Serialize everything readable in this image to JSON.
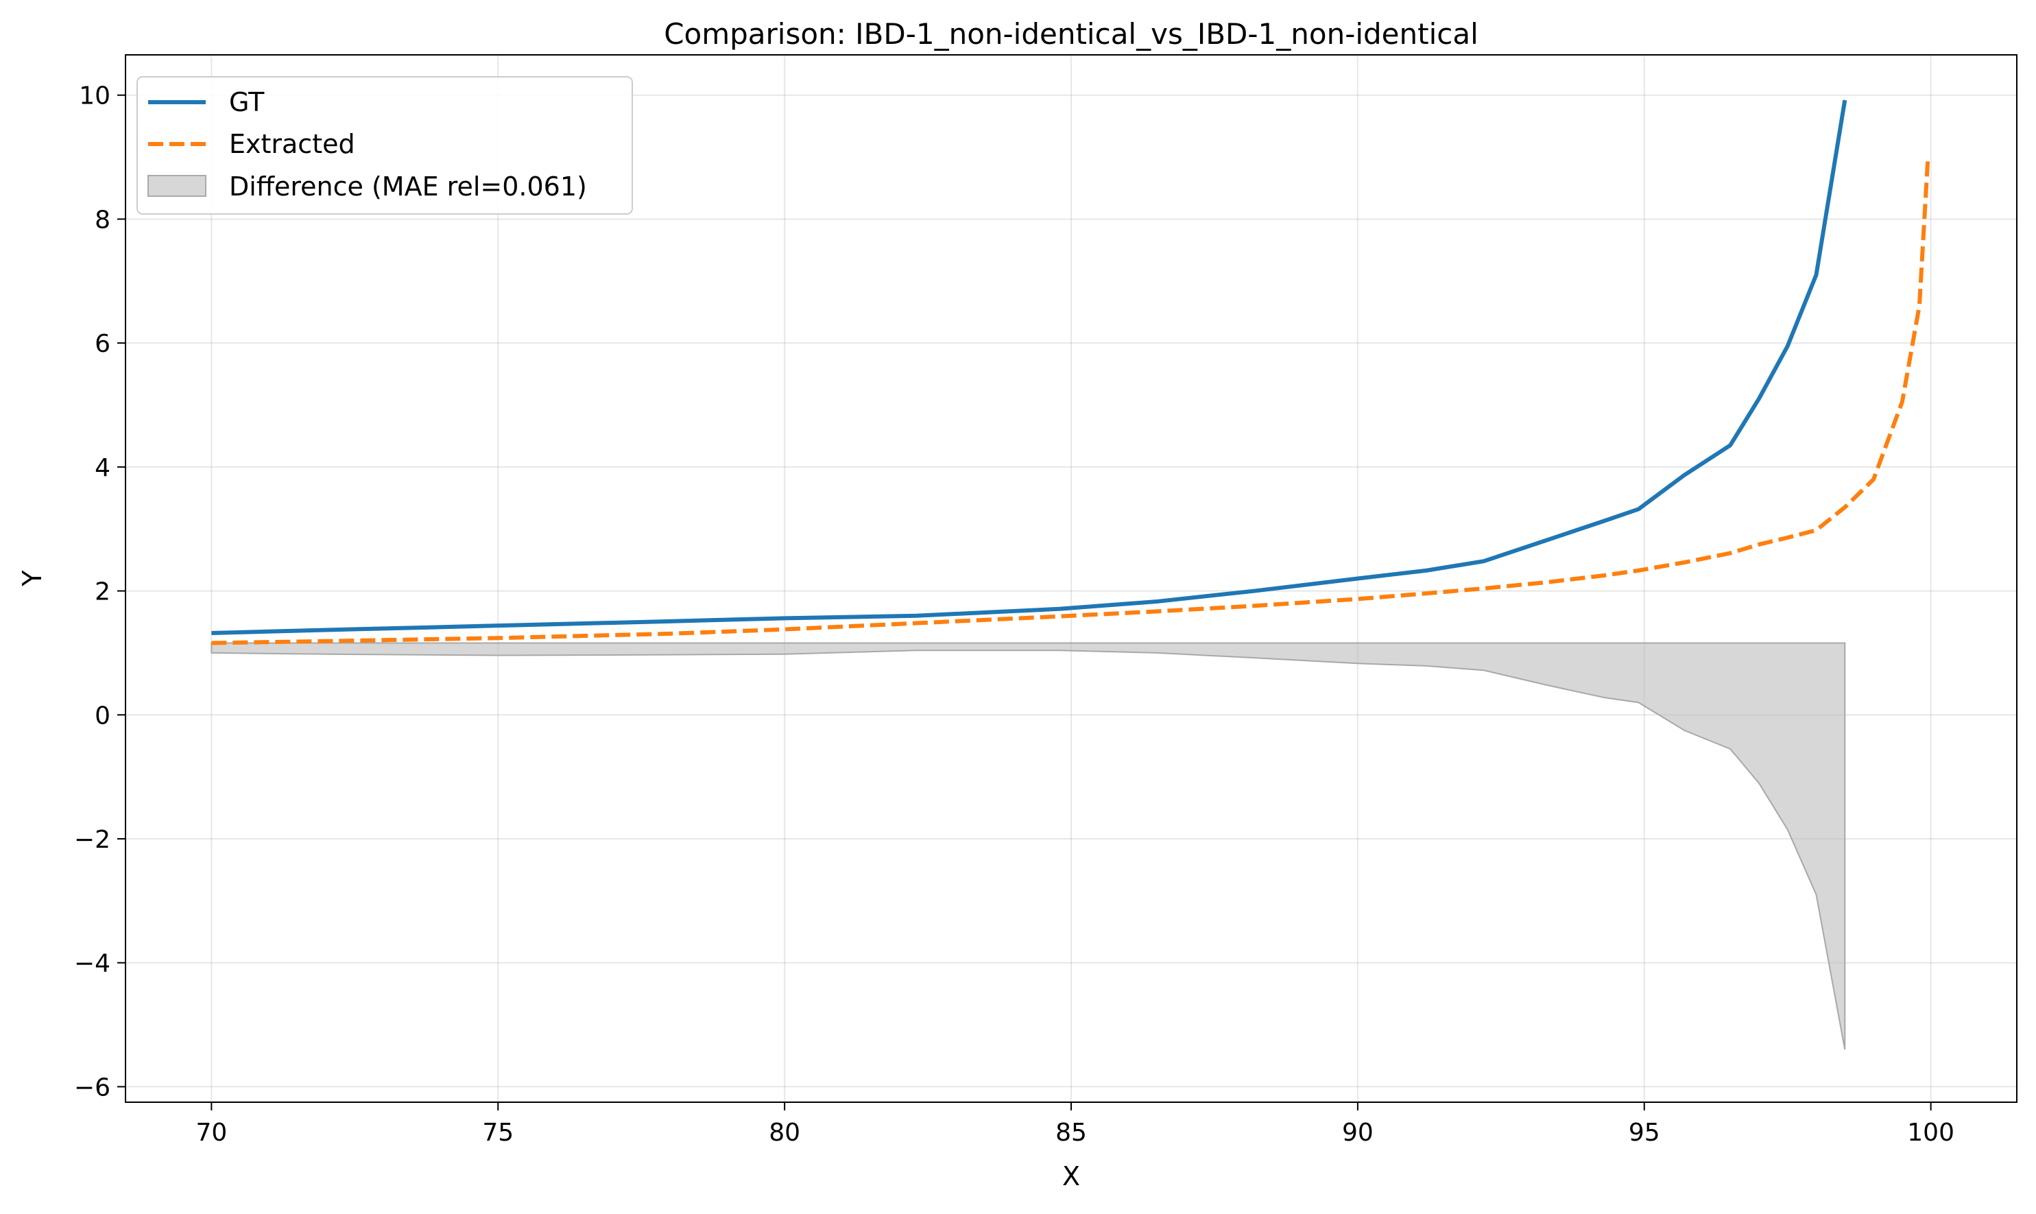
{
  "chart_data": {
    "type": "line",
    "title": "Comparison: IBD-1_non-identical_vs_IBD-1_non-identical",
    "xlabel": "X",
    "ylabel": "Y",
    "xlim": [
      68.5,
      101.5
    ],
    "ylim": [
      -6.25,
      10.65
    ],
    "xticks": [
      70,
      75,
      80,
      85,
      90,
      95,
      100
    ],
    "yticks": [
      -6,
      -4,
      -2,
      0,
      2,
      4,
      6,
      8,
      10
    ],
    "xtick_labels": [
      "70",
      "75",
      "80",
      "85",
      "90",
      "95",
      "100"
    ],
    "ytick_labels": [
      "−6",
      "−4",
      "−2",
      "0",
      "2",
      "4",
      "6",
      "8",
      "10"
    ],
    "grid": true,
    "legend_position": "upper-left",
    "series": [
      {
        "name": "GT",
        "style": "solid",
        "color": "#1f77b4",
        "x": [
          70,
          72,
          75,
          78,
          80,
          82.3,
          84.8,
          86.5,
          88.2,
          90,
          91.2,
          92.2,
          93.3,
          94.3,
          94.9,
          95.7,
          96.5,
          97,
          97.5,
          98,
          98.5
        ],
        "y": [
          1.32,
          1.37,
          1.44,
          1.51,
          1.56,
          1.6,
          1.71,
          1.83,
          2.0,
          2.2,
          2.33,
          2.48,
          2.82,
          3.13,
          3.32,
          3.87,
          4.35,
          5.1,
          5.95,
          7.1,
          9.92
        ]
      },
      {
        "name": "Extracted",
        "style": "dashed",
        "color": "#ff7f0e",
        "x": [
          70,
          72,
          75,
          78,
          80,
          82.3,
          84.8,
          86.5,
          88.2,
          90,
          91.2,
          92.2,
          93.3,
          94.3,
          94.9,
          95.7,
          96.5,
          97,
          97.5,
          98,
          98.5,
          99,
          99.5,
          99.8,
          99.95
        ],
        "y": [
          1.16,
          1.19,
          1.24,
          1.31,
          1.38,
          1.48,
          1.59,
          1.67,
          1.76,
          1.87,
          1.96,
          2.04,
          2.14,
          2.25,
          2.33,
          2.46,
          2.61,
          2.75,
          2.86,
          2.98,
          3.35,
          3.8,
          5.05,
          6.6,
          9.0
        ]
      }
    ],
    "fill_between": {
      "name": "Difference (MAE rel=0.061)",
      "color": "#bdbdbd",
      "x": [
        70,
        72,
        75,
        78,
        80,
        82.3,
        84.8,
        86.5,
        88.2,
        90,
        91.2,
        92.2,
        93.3,
        94.3,
        94.9,
        95.7,
        96.5,
        97,
        97.5,
        98,
        98.5
      ],
      "y_upper": [
        1.16,
        1.16,
        1.16,
        1.16,
        1.16,
        1.16,
        1.16,
        1.16,
        1.16,
        1.16,
        1.16,
        1.16,
        1.16,
        1.16,
        1.16,
        1.16,
        1.16,
        1.16,
        1.16,
        1.16,
        1.16
      ],
      "y_lower": [
        1.0,
        0.98,
        0.96,
        0.97,
        0.98,
        1.04,
        1.04,
        1.0,
        0.92,
        0.83,
        0.79,
        0.72,
        0.48,
        0.28,
        0.2,
        -0.25,
        -0.55,
        -1.1,
        -1.85,
        -2.9,
        -5.4
      ]
    }
  }
}
